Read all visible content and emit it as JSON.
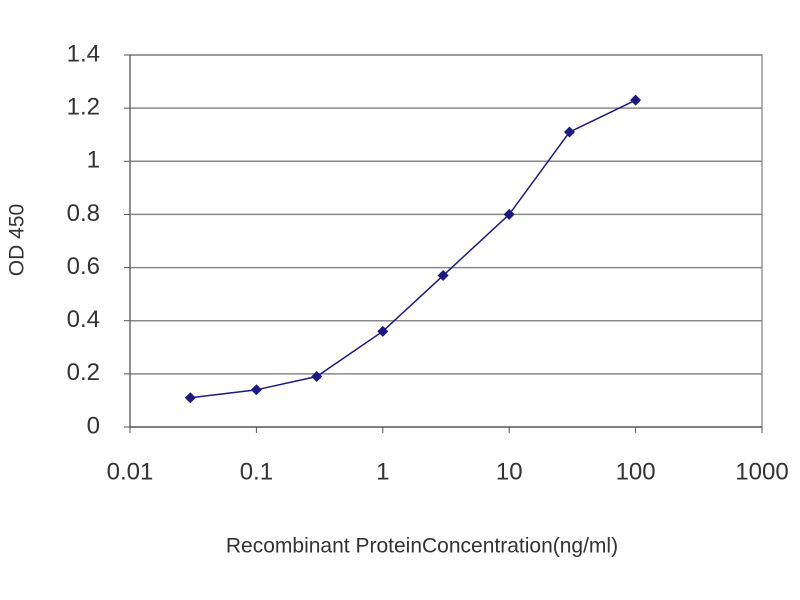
{
  "chart_data": {
    "type": "line",
    "x_label": "Recombinant ProteinConcentration(ng/ml)",
    "y_label": "OD 450",
    "xscale": "log",
    "xlim": [
      0.01,
      1000
    ],
    "xticks": [
      0.01,
      0.1,
      1,
      10,
      100,
      1000
    ],
    "ylim": [
      0,
      1.4
    ],
    "yticks": [
      0,
      0.2,
      0.4,
      0.6,
      0.8,
      1,
      1.2,
      1.4
    ],
    "grid": true,
    "series": [
      {
        "color": "#1a1a80",
        "x": [
          0.03,
          0.1,
          0.3,
          1,
          3,
          10,
          30,
          100
        ],
        "values": [
          0.11,
          0.14,
          0.19,
          0.36,
          0.57,
          0.8,
          1.11,
          1.23
        ]
      }
    ]
  }
}
